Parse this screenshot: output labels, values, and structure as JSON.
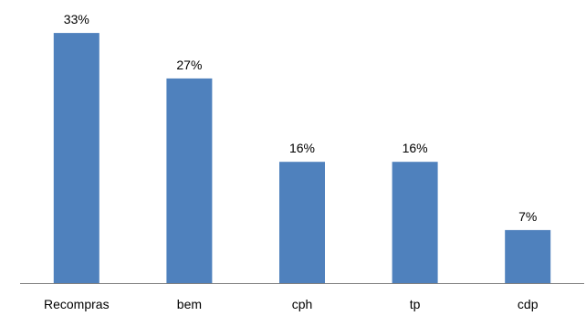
{
  "chart_data": {
    "type": "bar",
    "title": "",
    "xlabel": "",
    "ylabel": "",
    "categories": [
      "Recompras",
      "bem",
      "cph",
      "tp",
      "cdp"
    ],
    "values": [
      33,
      27,
      16,
      16,
      7
    ],
    "data_labels": [
      "33%",
      "27%",
      "16%",
      "16%",
      "7%"
    ],
    "unit": "%",
    "ylim": [
      0,
      35
    ],
    "grid": false,
    "legend": "none",
    "colors": {
      "bar": "#4f81bd",
      "axis": "#808080",
      "text": "#000000"
    }
  }
}
